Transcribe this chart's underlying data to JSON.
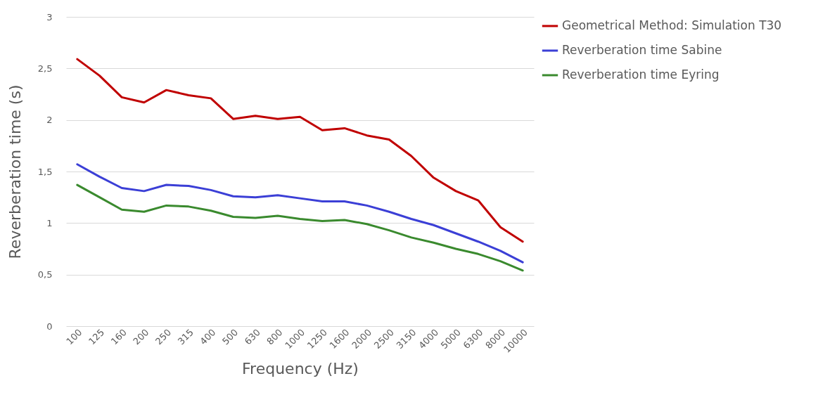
{
  "chart_data": {
    "type": "line",
    "xlabel": "Frequency (Hz)",
    "ylabel": "Reverberation time (s)",
    "categories": [
      "100",
      "125",
      "160",
      "200",
      "250",
      "315",
      "400",
      "500",
      "630",
      "800",
      "1000",
      "1250",
      "1600",
      "2000",
      "2500",
      "3150",
      "4000",
      "5000",
      "6300",
      "8000",
      "10000"
    ],
    "series": [
      {
        "name": "Geometrical Method: Simulation T30",
        "color": "#c00000",
        "values": [
          2.59,
          2.43,
          2.22,
          2.17,
          2.29,
          2.24,
          2.21,
          2.01,
          2.04,
          2.01,
          2.03,
          1.9,
          1.92,
          1.85,
          1.81,
          1.65,
          1.44,
          1.31,
          1.22,
          0.96,
          0.82
        ]
      },
      {
        "name": "Reverberation time Sabine",
        "color": "#3b3fd6",
        "values": [
          1.57,
          1.45,
          1.34,
          1.31,
          1.37,
          1.36,
          1.32,
          1.26,
          1.25,
          1.27,
          1.24,
          1.21,
          1.21,
          1.17,
          1.11,
          1.04,
          0.98,
          0.9,
          0.82,
          0.73,
          0.62
        ]
      },
      {
        "name": "Reverberation time Eyring",
        "color": "#3a8a2e",
        "values": [
          1.37,
          1.25,
          1.13,
          1.11,
          1.17,
          1.16,
          1.12,
          1.06,
          1.05,
          1.07,
          1.04,
          1.02,
          1.03,
          0.99,
          0.93,
          0.86,
          0.81,
          0.75,
          0.7,
          0.63,
          0.54
        ]
      }
    ],
    "ylim": [
      0,
      3
    ],
    "yticks": [
      0,
      {
        "value": 0.5,
        "label": "0,5"
      },
      1,
      {
        "value": 1.5,
        "label": "1,5"
      },
      2,
      {
        "value": 2.5,
        "label": "2,5"
      },
      3
    ],
    "grid": "y",
    "legend": "right",
    "marker": "none",
    "line_style": "solid"
  }
}
